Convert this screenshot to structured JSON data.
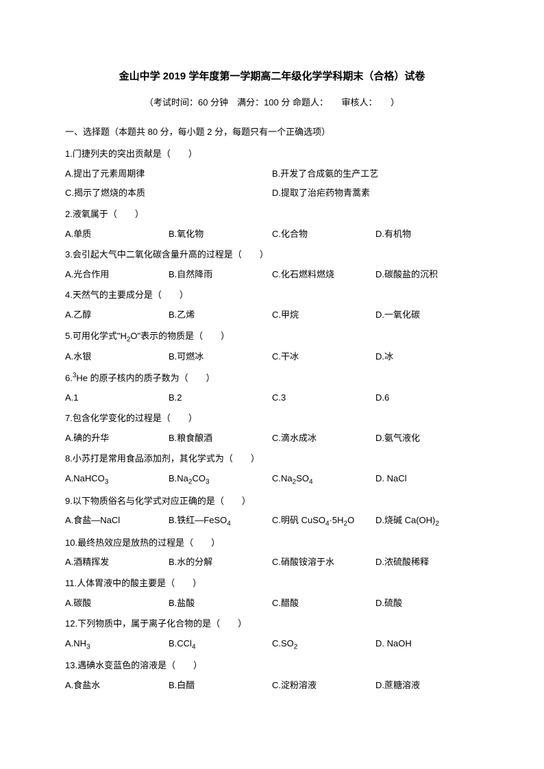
{
  "title": "金山中学 2019 学年度第一学期高二年级化学学科期末（合格）试卷",
  "subtitle": "（考试时间：60 分钟　满分：100 分 命题人：　　审核人：　　）",
  "section1_header": "一、选择题（本题共 80 分，每小题 2 分，每题只有一个正确选项）",
  "q1": {
    "text": "1.门捷列夫的突出贡献是（　　）",
    "a": "A.提出了元素周期律",
    "b": "B.开发了合成氨的生产工艺",
    "c": "C.揭示了燃烧的本质",
    "d": "D.提取了治疟药物青蒿素"
  },
  "q2": {
    "text": "2.液氧属于（　　）",
    "a": "A.单质",
    "b": "B.氧化物",
    "c": "C.化合物",
    "d": "D.有机物"
  },
  "q3": {
    "text": "3.会引起大气中二氧化碳含量升高的过程是（　　）",
    "a": "A.光合作用",
    "b": "B.自然降雨",
    "c": "C.化石燃料燃烧",
    "d": "D.碳酸盐的沉积"
  },
  "q4": {
    "text": "4.天然气的主要成分是（　　）",
    "a": "A.乙醇",
    "b": "B.乙烯",
    "c": "C.甲烷",
    "d": "D.一氧化碳"
  },
  "q5": {
    "text_pre": "5.可用化学式\"H",
    "text_post": "O\"表示的物质是（　　）",
    "a": "A.水银",
    "b": "B.可燃冰",
    "c": "C.干冰",
    "d": "D.冰"
  },
  "q6": {
    "text_pre": "6.",
    "text_mid": "He 的原子核内的质子数为（　　）",
    "a": "A.1",
    "b": "B.2",
    "c": "C.3",
    "d": "D.6"
  },
  "q7": {
    "text": "7.包含化学变化的过程是（　　）",
    "a": "A.碘的升华",
    "b": "B.粮食酿酒",
    "c": "C.滴水成冰",
    "d": "D.氨气液化"
  },
  "q8": {
    "text": "8.小苏打是常用食品添加剂，其化学式为（　　）",
    "a_pre": "A.NaHCO",
    "b_pre": "B.Na",
    "b_mid": "CO",
    "c_pre": "C.Na",
    "c_mid": "SO",
    "d": "D. NaCl"
  },
  "q9": {
    "text": "9.以下物质俗名与化学式对应正确的是（　　）",
    "a": "A.食盐—NaCl",
    "b_pre": "B.铁红—FeSO",
    "c_pre": "C.明矾 CuSO",
    "c_mid": "·5H",
    "c_post": "O",
    "d_pre": "D.烧碱 Ca(OH)"
  },
  "q10": {
    "text": "10.最终热效应是放热的过程是（　　）",
    "a": "A.酒精挥发",
    "b": "B.水的分解",
    "c": "C.硝酸铵溶于水",
    "d": "D.浓硫酸稀释"
  },
  "q11": {
    "text": "11.人体胃液中的酸主要是（　　）",
    "a": "A.碳酸",
    "b": "B.盐酸",
    "c": "C.醋酸",
    "d": "D.硫酸"
  },
  "q12": {
    "text": "12.下列物质中，属于离子化合物的是（　　）",
    "a_pre": "A.NH",
    "b_pre": "B.CCl",
    "c_pre": "C.SO",
    "d": "D. NaOH"
  },
  "q13": {
    "text": "13.遇碘水变蓝色的溶液是（　　）",
    "a": "A.食盐水",
    "b": "B.白醋",
    "c": "C.淀粉溶液",
    "d": "D.蔗糖溶液"
  }
}
